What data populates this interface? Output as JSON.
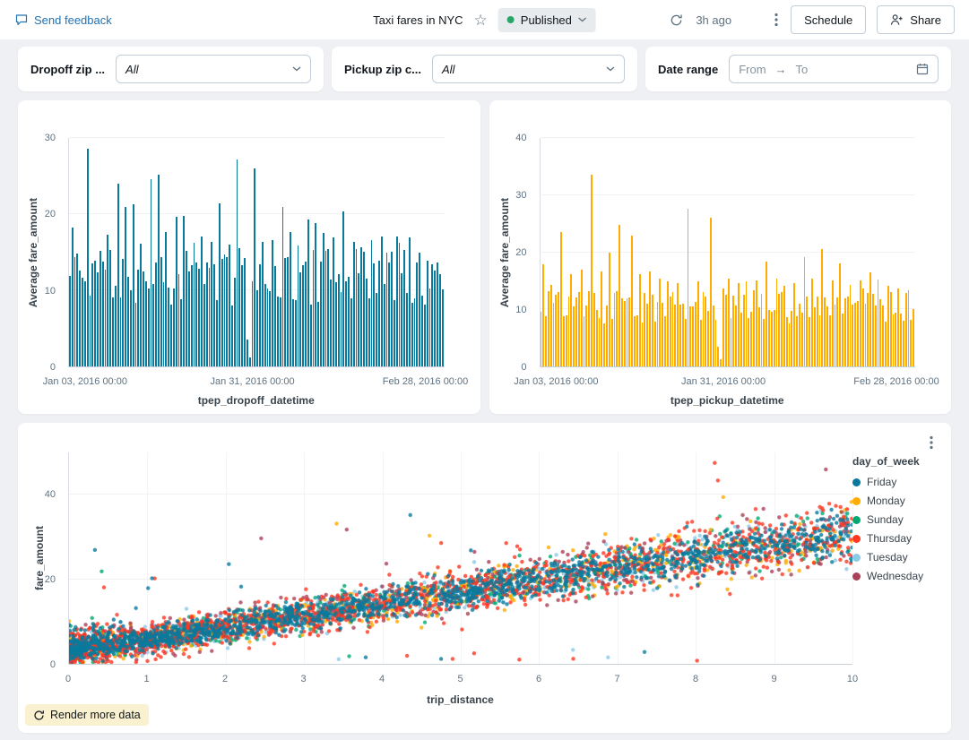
{
  "header": {
    "send_feedback": "Send feedback",
    "title": "Taxi fares in NYC",
    "published_label": "Published",
    "last_refresh": "3h ago",
    "schedule_label": "Schedule",
    "share_label": "Share"
  },
  "filters": {
    "dropoff": {
      "label": "Dropoff zip ...",
      "value": "All"
    },
    "pickup": {
      "label": "Pickup zip c...",
      "value": "All"
    },
    "date_range": {
      "label": "Date range",
      "from_placeholder": "From",
      "to_placeholder": "To"
    }
  },
  "colors": {
    "link_blue": "#2272B4",
    "published_green": "#29A56A",
    "page_background": "#EEF0F3",
    "axis_text": "#5F7281"
  },
  "chart_data": [
    {
      "id": "avg-fare-by-dropoff-time",
      "type": "bar",
      "xlabel": "tpep_dropoff_datetime",
      "ylabel": "Average fare_amount",
      "x_ticks": [
        "Jan 03, 2016 00:00",
        "Jan 31, 2016 00:00",
        "Feb 28, 2016 00:00"
      ],
      "y_ticks": [
        0,
        10,
        20,
        30
      ],
      "ylim": [
        0,
        30
      ],
      "color": "#077A9D",
      "bar_count": 148,
      "seed": 11,
      "base_range": [
        8,
        15.5
      ],
      "gaps": [
        0.478
      ],
      "spikes": [
        [
          0.005,
          18.2
        ],
        [
          0.02,
          14.8
        ],
        [
          0.045,
          28.6
        ],
        [
          0.06,
          13.5
        ],
        [
          0.08,
          15.2
        ],
        [
          0.1,
          17.3
        ],
        [
          0.125,
          24.0
        ],
        [
          0.15,
          20.9
        ],
        [
          0.17,
          21.3
        ],
        [
          0.19,
          16.1
        ],
        [
          0.215,
          24.6
        ],
        [
          0.235,
          25.2
        ],
        [
          0.26,
          17.6
        ],
        [
          0.285,
          19.6
        ],
        [
          0.305,
          19.8
        ],
        [
          0.33,
          16.2
        ],
        [
          0.35,
          17.1
        ],
        [
          0.375,
          16.4
        ],
        [
          0.4,
          21.4
        ],
        [
          0.425,
          16.0
        ],
        [
          0.445,
          27.2
        ],
        [
          0.465,
          14.2
        ],
        [
          0.495,
          26.0
        ],
        [
          0.515,
          16.4
        ],
        [
          0.54,
          16.6
        ],
        [
          0.565,
          21.0
        ],
        [
          0.585,
          17.6
        ],
        [
          0.61,
          15.9
        ],
        [
          0.635,
          19.3
        ],
        [
          0.655,
          18.8
        ],
        [
          0.68,
          15.2
        ],
        [
          0.705,
          16.9
        ],
        [
          0.73,
          20.4
        ],
        [
          0.755,
          16.4
        ],
        [
          0.78,
          15.7
        ],
        [
          0.805,
          16.6
        ],
        [
          0.83,
          17.1
        ],
        [
          0.855,
          15.1
        ],
        [
          0.88,
          16.2
        ],
        [
          0.905,
          16.9
        ],
        [
          0.93,
          14.9
        ],
        [
          0.955,
          13.9
        ],
        [
          0.98,
          13.6
        ]
      ]
    },
    {
      "id": "avg-fare-by-pickup-time",
      "type": "bar",
      "xlabel": "tpep_pickup_datetime",
      "ylabel": "Average fare_amount",
      "x_ticks": [
        "Jan 03, 2016 00:00",
        "Jan 31, 2016 00:00",
        "Feb 28, 2016 00:00"
      ],
      "y_ticks": [
        0,
        10,
        20,
        30,
        40
      ],
      "ylim": [
        0,
        40
      ],
      "color": "#FFAB00",
      "bar_count": 148,
      "seed": 23,
      "base_range": [
        7.5,
        13.5
      ],
      "gaps": [
        0.48
      ],
      "spikes": [
        [
          0.005,
          17.9
        ],
        [
          0.03,
          14.2
        ],
        [
          0.055,
          23.6
        ],
        [
          0.08,
          16.2
        ],
        [
          0.105,
          17.0
        ],
        [
          0.135,
          33.5
        ],
        [
          0.16,
          16.6
        ],
        [
          0.185,
          20.0
        ],
        [
          0.21,
          24.8
        ],
        [
          0.24,
          22.9
        ],
        [
          0.265,
          16.1
        ],
        [
          0.29,
          16.6
        ],
        [
          0.315,
          15.4
        ],
        [
          0.34,
          14.9
        ],
        [
          0.365,
          14.6
        ],
        [
          0.395,
          27.6
        ],
        [
          0.42,
          14.9
        ],
        [
          0.455,
          26.1
        ],
        [
          0.5,
          15.4
        ],
        [
          0.525,
          14.6
        ],
        [
          0.55,
          14.9
        ],
        [
          0.575,
          15.1
        ],
        [
          0.6,
          18.4
        ],
        [
          0.625,
          15.4
        ],
        [
          0.65,
          14.1
        ],
        [
          0.675,
          14.6
        ],
        [
          0.7,
          19.1
        ],
        [
          0.725,
          15.3
        ],
        [
          0.75,
          20.6
        ],
        [
          0.775,
          15.0
        ],
        [
          0.8,
          18.0
        ],
        [
          0.825,
          14.2
        ],
        [
          0.85,
          15.1
        ],
        [
          0.875,
          16.4
        ],
        [
          0.9,
          15.2
        ],
        [
          0.925,
          14.1
        ],
        [
          0.95,
          13.6
        ],
        [
          0.975,
          12.9
        ]
      ]
    },
    {
      "id": "fare-vs-distance-scatter",
      "type": "scatter",
      "xlabel": "trip_distance",
      "ylabel": "fare_amount",
      "legend_title": "day_of_week",
      "render_more_label": "Render more data",
      "x_ticks": [
        "0",
        "1",
        "2",
        "3",
        "4",
        "5",
        "6",
        "7",
        "8",
        "9",
        "10"
      ],
      "y_ticks": [
        0,
        20,
        40
      ],
      "xlim": [
        0,
        10
      ],
      "ylim": [
        0,
        50
      ],
      "trend": {
        "intercept": 3.0,
        "slope": 2.8
      },
      "seed": 99,
      "x_skew": 1.35,
      "outlier_rate": 0.006,
      "outlier_boost": 18,
      "series": [
        {
          "name": "Friday",
          "color": "#077A9D",
          "n": 1700,
          "spread": 2.2
        },
        {
          "name": "Monday",
          "color": "#FFAB00",
          "n": 520,
          "spread": 3.0
        },
        {
          "name": "Sunday",
          "color": "#00A972",
          "n": 400,
          "spread": 3.0
        },
        {
          "name": "Thursday",
          "color": "#FF3621",
          "n": 1300,
          "spread": 3.2
        },
        {
          "name": "Tuesday",
          "color": "#8BCAE7",
          "n": 500,
          "spread": 2.8
        },
        {
          "name": "Wednesday",
          "color": "#AB4057",
          "n": 650,
          "spread": 3.0
        }
      ],
      "draw_order": [
        "Tuesday",
        "Sunday",
        "Monday",
        "Wednesday",
        "Thursday",
        "Friday"
      ]
    }
  ]
}
